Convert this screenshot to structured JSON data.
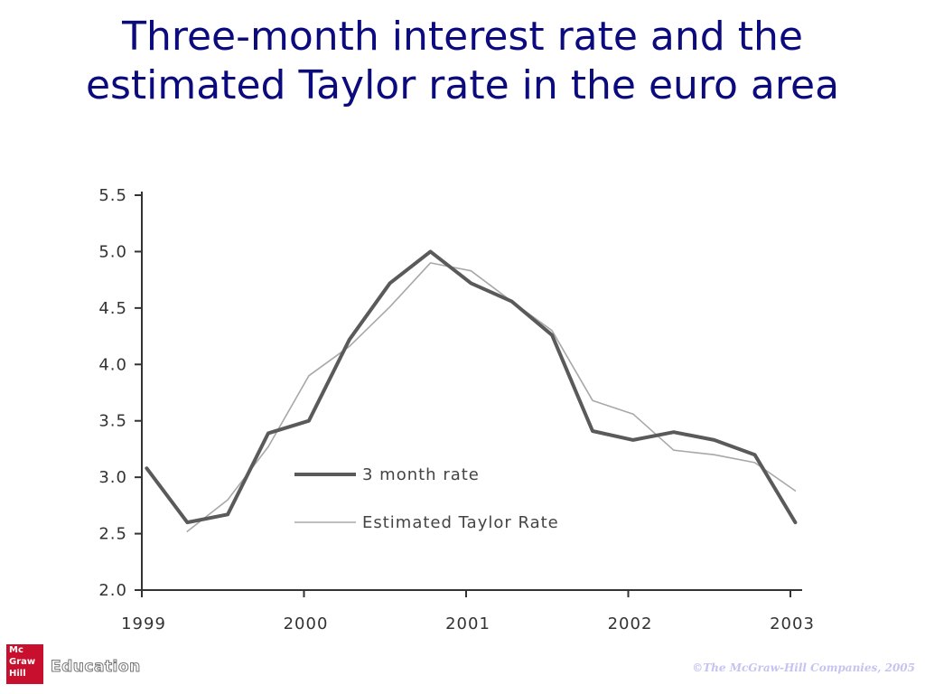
{
  "slide": {
    "title_line1": "Three-month interest rate and the",
    "title_line2": "estimated Taylor rate in the euro area"
  },
  "footer": {
    "logo_lines": [
      "Mc",
      "Graw",
      "Hill"
    ],
    "logo_word": "Education",
    "copyright": "©The McGraw-Hill Companies, 2005"
  },
  "colors": {
    "title": "#0b0b7e",
    "series_3month": "#5a5a5a",
    "series_taylor": "#a8a8a8",
    "logo": "#c8102e"
  },
  "chart_data": {
    "type": "line",
    "title": "",
    "xlabel": "",
    "ylabel": "",
    "xlim": [
      1999,
      2003
    ],
    "ylim": [
      2.0,
      5.5
    ],
    "x_ticks": [
      1999,
      2000,
      2001,
      2002,
      2003
    ],
    "x_tick_labels": [
      "1999",
      "2000",
      "2001",
      "2002",
      "2003"
    ],
    "y_ticks": [
      2.0,
      2.5,
      3.0,
      3.5,
      4.0,
      4.5,
      5.0,
      5.5
    ],
    "y_tick_labels": [
      "2.0",
      "2.5",
      "3.0",
      "3.5",
      "4.0",
      "4.5",
      "5.0",
      "5.5"
    ],
    "grid": false,
    "legend_position": "center-left",
    "series": [
      {
        "name": "3 month rate",
        "color": "#5a5a5a",
        "x": [
          1999.03,
          1999.28,
          1999.53,
          1999.78,
          2000.03,
          2000.28,
          2000.53,
          2000.78,
          2001.03,
          2001.28,
          2001.53,
          2001.78,
          2002.03,
          2002.28,
          2002.53,
          2002.78,
          2003.03
        ],
        "y": [
          3.08,
          2.6,
          2.67,
          3.39,
          3.5,
          4.22,
          4.72,
          5.0,
          4.72,
          4.56,
          4.26,
          3.41,
          3.33,
          3.4,
          3.33,
          3.2,
          2.6
        ]
      },
      {
        "name": "Estimated Taylor Rate",
        "color": "#a8a8a8",
        "x": [
          1999.28,
          1999.53,
          1999.78,
          2000.03,
          2000.28,
          2000.53,
          2000.78,
          2001.03,
          2001.28,
          2001.53,
          2001.78,
          2002.03,
          2002.28,
          2002.53,
          2002.78,
          2003.03
        ],
        "y": [
          2.52,
          2.8,
          3.27,
          3.9,
          4.16,
          4.51,
          4.9,
          4.83,
          4.56,
          4.3,
          3.68,
          3.56,
          3.24,
          3.2,
          3.13,
          2.88
        ]
      }
    ]
  }
}
